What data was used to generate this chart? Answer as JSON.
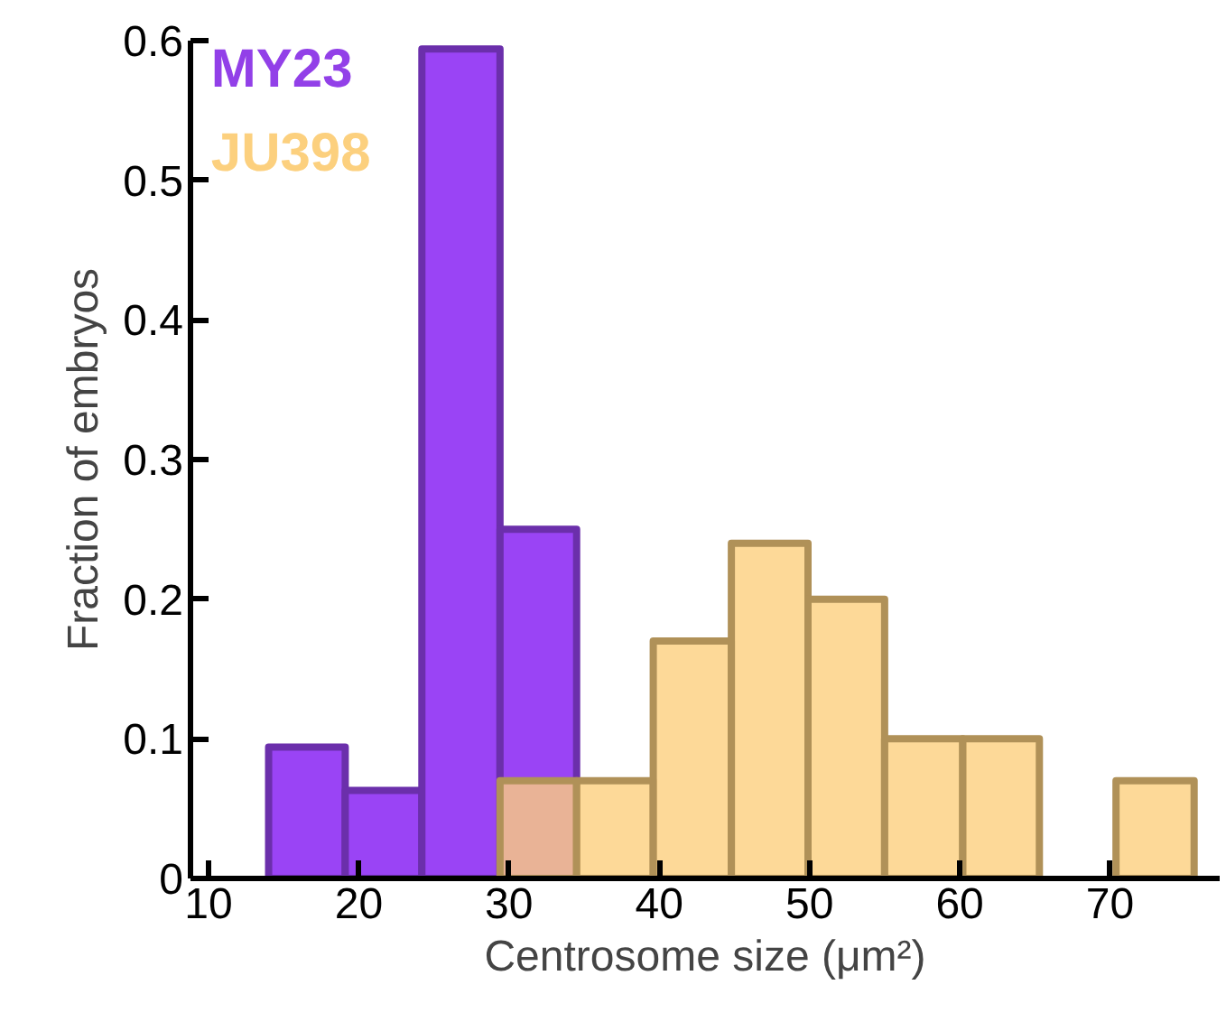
{
  "chart_data": {
    "type": "histogram",
    "xlabel": "Centrosome size (μm²)",
    "ylabel": "Fraction of embryos",
    "bins": [
      14.0,
      19.1,
      24.2,
      29.4,
      34.5,
      39.6,
      44.8,
      49.9,
      55.0,
      60.2,
      65.3,
      70.4,
      75.6
    ],
    "series": [
      {
        "name": "MY23",
        "color": "#9a44f5",
        "values": [
          0.094,
          0.063,
          0.594,
          0.25,
          null,
          null,
          null,
          null,
          null,
          null,
          null,
          null
        ]
      },
      {
        "name": "JU398",
        "color": "#fcd07e",
        "values": [
          null,
          null,
          null,
          0.07,
          0.07,
          0.17,
          0.24,
          0.2,
          0.1,
          0.1,
          null,
          0.07
        ]
      }
    ],
    "xlim": [
      8.8,
      77.3
    ],
    "ylim": [
      0,
      0.6
    ],
    "xticks": [
      10,
      20,
      30,
      40,
      50,
      60,
      70
    ],
    "yticks": [
      0,
      0.1,
      0.2,
      0.3,
      0.4,
      0.5,
      0.6
    ],
    "grid": false,
    "legend": "top left"
  }
}
